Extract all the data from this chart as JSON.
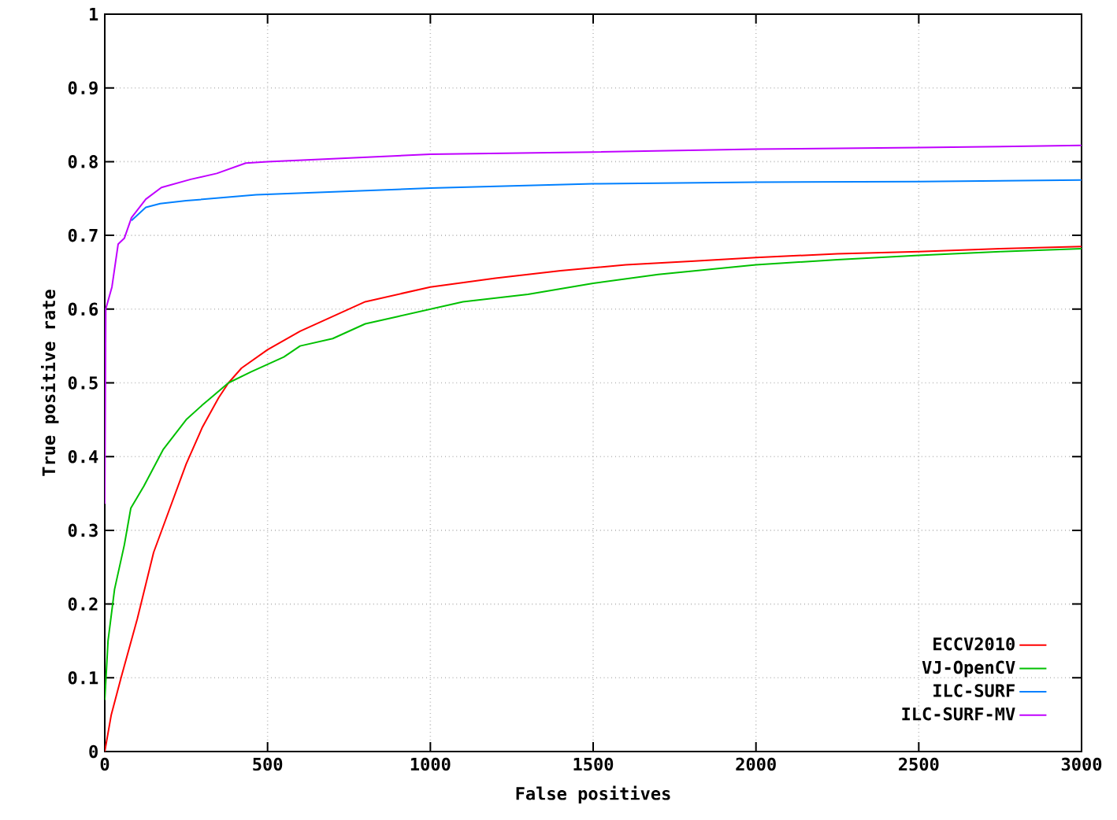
{
  "chart_data": {
    "type": "line",
    "xlabel": "False positives",
    "ylabel": "True positive rate",
    "xlim": [
      0,
      3000
    ],
    "ylim": [
      0,
      1
    ],
    "xticks": [
      0,
      500,
      1000,
      1500,
      2000,
      2500,
      3000
    ],
    "yticks": [
      0,
      0.1,
      0.2,
      0.3,
      0.4,
      0.5,
      0.6,
      0.7,
      0.8,
      0.9,
      1
    ],
    "grid": true,
    "legend": "bottom right",
    "marker": "none",
    "line_style": "solid",
    "series": [
      {
        "name": "ECCV2010",
        "color": "#ff0000",
        "x": [
          0,
          20,
          50,
          100,
          150,
          200,
          250,
          300,
          350,
          380,
          420,
          500,
          600,
          700,
          800,
          900,
          1000,
          1200,
          1400,
          1600,
          1800,
          2000,
          2250,
          2500,
          2750,
          3000
        ],
        "values": [
          0,
          0.05,
          0.1,
          0.18,
          0.27,
          0.33,
          0.39,
          0.44,
          0.48,
          0.5,
          0.52,
          0.545,
          0.57,
          0.59,
          0.61,
          0.62,
          0.63,
          0.642,
          0.652,
          0.66,
          0.665,
          0.67,
          0.675,
          0.678,
          0.682,
          0.685
        ]
      },
      {
        "name": "VJ-OpenCV",
        "color": "#00c000",
        "x": [
          0,
          10,
          30,
          60,
          80,
          120,
          180,
          250,
          300,
          380,
          450,
          550,
          600,
          700,
          800,
          900,
          1000,
          1100,
          1300,
          1500,
          1700,
          2000,
          2250,
          2500,
          2750,
          3000
        ],
        "values": [
          0.07,
          0.15,
          0.22,
          0.28,
          0.33,
          0.36,
          0.41,
          0.45,
          0.47,
          0.5,
          0.515,
          0.535,
          0.55,
          0.56,
          0.58,
          0.59,
          0.6,
          0.61,
          0.62,
          0.635,
          0.647,
          0.66,
          0.667,
          0.673,
          0.678,
          0.682
        ]
      },
      {
        "name": "ILC-SURF",
        "color": "#0080ff",
        "x": [
          82,
          126,
          170,
          250,
          465,
          1000,
          1500,
          2000,
          2500,
          3000
        ],
        "values": [
          0.72,
          0.738,
          0.743,
          0.747,
          0.755,
          0.764,
          0.77,
          0.772,
          0.773,
          0.775
        ]
      },
      {
        "name": "ILC-SURF-MV",
        "color": "#c000ff",
        "x": [
          0,
          3,
          22,
          41,
          60,
          82,
          126,
          174,
          264,
          344,
          433,
          500,
          1000,
          1500,
          2000,
          2500,
          3000
        ],
        "values": [
          0.336,
          0.6,
          0.63,
          0.688,
          0.696,
          0.724,
          0.749,
          0.765,
          0.776,
          0.784,
          0.798,
          0.8,
          0.81,
          0.813,
          0.817,
          0.819,
          0.822
        ]
      }
    ]
  }
}
